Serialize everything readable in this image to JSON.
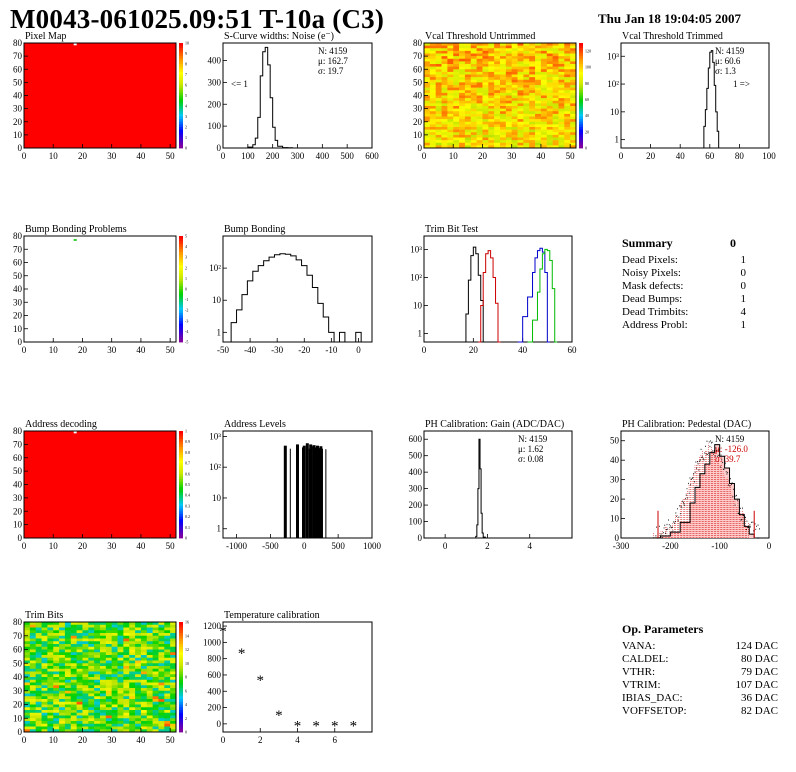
{
  "header": {
    "title": "M0043-061025.09:51 T-10a (C3)",
    "date": "Thu Jan 18 19:04:05 2007"
  },
  "summary": {
    "title": "Summary",
    "value": "0",
    "rows": [
      {
        "label": "Dead Pixels:",
        "value": "1"
      },
      {
        "label": "Noisy Pixels:",
        "value": "0"
      },
      {
        "label": "Mask defects:",
        "value": "0"
      },
      {
        "label": "Dead Bumps:",
        "value": "1"
      },
      {
        "label": "Dead Trimbits:",
        "value": "4"
      },
      {
        "label": "Address Probl:",
        "value": "1"
      }
    ]
  },
  "op_params": {
    "title": "Op. Parameters",
    "rows": [
      {
        "label": "VANA:",
        "value": "124 DAC"
      },
      {
        "label": "CALDEL:",
        "value": "80 DAC"
      },
      {
        "label": "VTHR:",
        "value": "79 DAC"
      },
      {
        "label": "VTRIM:",
        "value": "107 DAC"
      },
      {
        "label": "IBIAS_DAC:",
        "value": "36 DAC"
      },
      {
        "label": "VOFFSETOP:",
        "value": "82 DAC"
      }
    ]
  },
  "chart_data": [
    {
      "id": "pixel-map",
      "type": "heatmap",
      "title": "Pixel Map",
      "xlim": [
        0,
        52
      ],
      "ylim": [
        0,
        80
      ],
      "xticks": [
        0,
        10,
        20,
        30,
        40,
        50
      ],
      "yticks": [
        0,
        10,
        20,
        30,
        40,
        50,
        60,
        70,
        80
      ],
      "fill": "uniform-red",
      "zlim": [
        0,
        10
      ],
      "zticks": [
        0,
        1,
        2,
        3,
        4,
        5,
        6,
        7,
        8,
        9,
        10
      ],
      "marked_cell": [
        17,
        79
      ]
    },
    {
      "id": "scurve",
      "type": "line",
      "title": "S-Curve widths: Noise (e⁻)",
      "xlim": [
        0,
        600
      ],
      "ylim": [
        0,
        480
      ],
      "xticks": [
        0,
        100,
        200,
        300,
        400,
        500,
        600
      ],
      "yticks": [
        0,
        100,
        200,
        300,
        400
      ],
      "stats": [
        "N: 4159",
        "μ: 162.7",
        "σ: 19.7"
      ],
      "annotation": "<= 1",
      "x": [
        80,
        100,
        120,
        130,
        140,
        150,
        160,
        170,
        180,
        190,
        200,
        210,
        220,
        240,
        260,
        280
      ],
      "y": [
        0,
        4,
        15,
        45,
        140,
        330,
        440,
        460,
        380,
        230,
        95,
        35,
        8,
        2,
        1,
        0
      ]
    },
    {
      "id": "vcal-untrimmed",
      "type": "heatmap",
      "title": "Vcal Threshold Untrimmed",
      "xlim": [
        0,
        52
      ],
      "ylim": [
        0,
        80
      ],
      "xticks": [
        0,
        10,
        20,
        30,
        40,
        50
      ],
      "yticks": [
        0,
        10,
        20,
        30,
        40,
        50,
        60,
        70,
        80
      ],
      "fill": "noise-orange-yellow",
      "zlim": [
        0,
        130
      ],
      "zticks": [
        0,
        20,
        40,
        60,
        80,
        100,
        120
      ]
    },
    {
      "id": "vcal-trimmed",
      "type": "line",
      "title": "Vcal Threshold Trimmed",
      "log_y": true,
      "xlim": [
        0,
        100
      ],
      "ylim": [
        0.5,
        3000
      ],
      "xticks": [
        0,
        20,
        40,
        60,
        80,
        100
      ],
      "yticks": [
        1,
        10,
        100,
        1000
      ],
      "stats": [
        "N: 4159",
        "μ: 60.6",
        "σ: 1.3"
      ],
      "annotation": "1 =>",
      "x": [
        55,
        56,
        57,
        58,
        59,
        60,
        61,
        62,
        63,
        64,
        65,
        66
      ],
      "y": [
        0,
        3,
        12,
        70,
        380,
        1400,
        1600,
        600,
        90,
        10,
        2,
        0
      ]
    },
    {
      "id": "bump-problems",
      "type": "heatmap",
      "title": "Bump Bonding Problems",
      "xlim": [
        0,
        52
      ],
      "ylim": [
        0,
        80
      ],
      "xticks": [
        0,
        10,
        20,
        30,
        40,
        50
      ],
      "yticks": [
        0,
        10,
        20,
        30,
        40,
        50,
        60,
        70,
        80
      ],
      "fill": "empty",
      "zlim": [
        -5,
        5
      ],
      "zticks": [
        -5,
        -4,
        -3,
        -2,
        -1,
        0,
        1,
        2,
        3,
        4,
        5
      ],
      "marked_cell": [
        17,
        77
      ]
    },
    {
      "id": "bump-bonding",
      "type": "line",
      "title": "Bump Bonding",
      "log_y": true,
      "xlim": [
        -50,
        5
      ],
      "ylim": [
        0.5,
        1000
      ],
      "xticks": [
        -50,
        -40,
        -30,
        -20,
        -10,
        0
      ],
      "yticks": [
        1,
        10,
        100
      ],
      "x": [
        -49,
        -47,
        -45,
        -43,
        -41,
        -39,
        -37,
        -35,
        -33,
        -31,
        -29,
        -27,
        -25,
        -23,
        -21,
        -19,
        -17,
        -15,
        -13,
        -11,
        -9,
        -7,
        -5,
        -3,
        -1,
        1
      ],
      "y": [
        0,
        2,
        5,
        15,
        40,
        80,
        120,
        170,
        220,
        260,
        280,
        270,
        240,
        180,
        120,
        60,
        25,
        8,
        3,
        1,
        0,
        1,
        0,
        0,
        1,
        0
      ]
    },
    {
      "id": "trim-bit-test",
      "type": "line",
      "title": "Trim Bit Test",
      "log_y": true,
      "xlim": [
        0,
        60
      ],
      "ylim": [
        0.5,
        3000
      ],
      "xticks": [
        0,
        20,
        40,
        60
      ],
      "yticks": [
        1,
        10,
        100,
        1000
      ],
      "series": [
        {
          "color": "#000000",
          "x": [
            16,
            17,
            18,
            19,
            20,
            21,
            22,
            23,
            24
          ],
          "y": [
            0,
            5,
            80,
            600,
            1200,
            700,
            120,
            15,
            0
          ]
        },
        {
          "color": "#cc0000",
          "x": [
            22,
            23,
            24,
            25,
            26,
            27,
            28,
            29,
            30
          ],
          "y": [
            0,
            10,
            150,
            700,
            900,
            500,
            100,
            12,
            0
          ]
        },
        {
          "color": "#0000cc",
          "x": [
            38,
            40,
            42,
            44,
            45,
            46,
            47,
            48,
            49,
            50
          ],
          "y": [
            0,
            4,
            20,
            150,
            500,
            900,
            1100,
            800,
            150,
            0
          ]
        },
        {
          "color": "#00bb00",
          "x": [
            42,
            44,
            46,
            47,
            48,
            49,
            50,
            51,
            52,
            53
          ],
          "y": [
            0,
            3,
            30,
            200,
            700,
            1000,
            900,
            400,
            40,
            0
          ]
        }
      ]
    },
    {
      "id": "address-decoding",
      "type": "heatmap",
      "title": "Address decoding",
      "xlim": [
        0,
        52
      ],
      "ylim": [
        0,
        80
      ],
      "xticks": [
        0,
        10,
        20,
        30,
        40,
        50
      ],
      "yticks": [
        0,
        10,
        20,
        30,
        40,
        50,
        60,
        70,
        80
      ],
      "fill": "uniform-red",
      "zlim": [
        0,
        1
      ],
      "zticks": [
        0,
        0.1,
        0.2,
        0.3,
        0.4,
        0.5,
        0.6,
        0.7,
        0.8,
        0.9,
        1
      ],
      "marked_cell": [
        17,
        79
      ]
    },
    {
      "id": "address-levels",
      "type": "bar",
      "title": "Address Levels",
      "log_y": true,
      "xlim": [
        -1200,
        1000
      ],
      "ylim": [
        0.5,
        1500
      ],
      "xticks": [
        -1000,
        -500,
        0,
        500,
        1000
      ],
      "yticks": [
        1,
        10,
        100,
        1000
      ],
      "x": [
        -280,
        -100,
        0,
        45,
        95,
        145,
        195,
        245
      ],
      "y": [
        500,
        550,
        500,
        600,
        550,
        520,
        500,
        480
      ]
    },
    {
      "id": "ph-gain",
      "type": "line",
      "title": "PH Calibration: Gain (ADC/DAC)",
      "xlim": [
        -1,
        6
      ],
      "ylim": [
        0,
        650
      ],
      "xticks": [
        0,
        2,
        4
      ],
      "yticks": [
        0,
        100,
        200,
        300,
        400,
        500,
        600
      ],
      "stats": [
        "N: 4159",
        "μ: 1.62",
        "σ: 0.08"
      ],
      "x": [
        1.35,
        1.45,
        1.5,
        1.55,
        1.6,
        1.65,
        1.7,
        1.75,
        1.8,
        1.9
      ],
      "y": [
        0,
        10,
        80,
        300,
        600,
        420,
        150,
        30,
        5,
        0
      ]
    },
    {
      "id": "ph-pedestal",
      "type": "histogram",
      "title": "PH Calibration: Pedestal (DAC)",
      "xlim": [
        -300,
        0
      ],
      "ylim": [
        0,
        55
      ],
      "xticks": [
        -300,
        -200,
        -100,
        0
      ],
      "yticks": [
        0,
        10,
        20,
        30,
        40,
        50
      ],
      "stats": [
        "N: 4159",
        "μ: -126.0",
        "σ: 39.7"
      ],
      "x": [
        -240,
        -220,
        -200,
        -180,
        -160,
        -150,
        -140,
        -130,
        -120,
        -110,
        -100,
        -90,
        -80,
        -70,
        -60,
        -50,
        -40,
        -30
      ],
      "y": [
        0,
        1,
        3,
        8,
        18,
        26,
        33,
        38,
        44,
        48,
        42,
        36,
        28,
        20,
        12,
        6,
        2,
        0
      ],
      "cut_lines": [
        -225,
        -30
      ]
    },
    {
      "id": "trim-bits",
      "type": "heatmap",
      "title": "Trim Bits",
      "xlim": [
        0,
        52
      ],
      "ylim": [
        0,
        80
      ],
      "xticks": [
        0,
        10,
        20,
        30,
        40,
        50
      ],
      "yticks": [
        0,
        10,
        20,
        30,
        40,
        50,
        60,
        70,
        80
      ],
      "fill": "noise-green-yellow",
      "zlim": [
        0,
        16
      ],
      "zticks": [
        0,
        2,
        4,
        6,
        8,
        10,
        12,
        14,
        16
      ]
    },
    {
      "id": "temp-calibration",
      "type": "scatter",
      "title": "Temperature calibration",
      "xlim": [
        0,
        8
      ],
      "ylim": [
        -100,
        1250
      ],
      "xticks": [
        0,
        2,
        4,
        6
      ],
      "yticks": [
        0,
        200,
        400,
        600,
        800,
        1000,
        1200
      ],
      "x": [
        0,
        1,
        2,
        3,
        4,
        5,
        6,
        7
      ],
      "y": [
        1140,
        870,
        540,
        110,
        -20,
        -20,
        -20,
        -20
      ]
    }
  ]
}
